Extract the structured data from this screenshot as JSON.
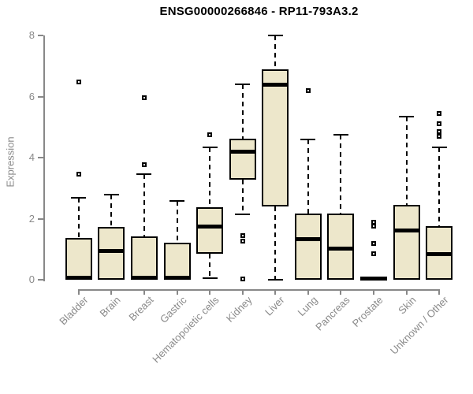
{
  "title": "ENSG00000266846 - RP11-793A3.2",
  "chart_data": {
    "type": "boxplot",
    "title": "ENSG00000266846 - RP11-793A3.2",
    "ylabel": "Expression",
    "xlabel": "",
    "ylim": [
      0,
      8
    ],
    "yticks": [
      0,
      2,
      4,
      6,
      8
    ],
    "grid": false,
    "legend": "none",
    "categories": [
      "Bladder",
      "Brain",
      "Breast",
      "Gastric",
      "Hematopoietic cells",
      "Kidney",
      "Liver",
      "Lung",
      "Pancreas",
      "Prostate",
      "Skin",
      "Unknown / Other"
    ],
    "series": [
      {
        "name": "Bladder",
        "whisker_low": 0,
        "q1": 0,
        "median": 0.07,
        "q3": 1.37,
        "whisker_high": 2.7,
        "outliers": [
          3.48,
          6.5
        ]
      },
      {
        "name": "Brain",
        "whisker_low": 0.02,
        "q1": 0.02,
        "median": 0.95,
        "q3": 1.73,
        "whisker_high": 2.8,
        "outliers": []
      },
      {
        "name": "Breast",
        "whisker_low": 0,
        "q1": 0,
        "median": 0.07,
        "q3": 1.44,
        "whisker_high": 3.46,
        "outliers": [
          3.77,
          5.98
        ]
      },
      {
        "name": "Gastric",
        "whisker_low": 0,
        "q1": 0,
        "median": 0.07,
        "q3": 1.22,
        "whisker_high": 2.6,
        "outliers": []
      },
      {
        "name": "Hematopoietic cells",
        "whisker_low": 0.05,
        "q1": 0.85,
        "median": 1.74,
        "q3": 2.39,
        "whisker_high": 4.34,
        "outliers": [
          4.76
        ]
      },
      {
        "name": "Kidney",
        "whisker_low": 2.14,
        "q1": 3.3,
        "median": 4.2,
        "q3": 4.64,
        "whisker_high": 6.4,
        "outliers": [
          1.45,
          1.28,
          0.03
        ]
      },
      {
        "name": "Liver",
        "whisker_low": 0.02,
        "q1": 2.4,
        "median": 6.4,
        "q3": 6.9,
        "whisker_high": 8.02,
        "outliers": []
      },
      {
        "name": "Lung",
        "whisker_low": 0.02,
        "q1": 0.02,
        "median": 1.35,
        "q3": 2.18,
        "whisker_high": 4.6,
        "outliers": [
          6.2
        ]
      },
      {
        "name": "Pancreas",
        "whisker_low": 0.02,
        "q1": 0.02,
        "median": 1.03,
        "q3": 2.18,
        "whisker_high": 4.77,
        "outliers": []
      },
      {
        "name": "Prostate",
        "whisker_low": 0,
        "q1": 0,
        "median": 0.04,
        "q3": 0.08,
        "whisker_high": 0.08,
        "outliers": [
          1.9,
          1.77,
          1.2,
          0.85
        ]
      },
      {
        "name": "Skin",
        "whisker_low": 0.02,
        "q1": 0.02,
        "median": 1.63,
        "q3": 2.45,
        "whisker_high": 5.36,
        "outliers": []
      },
      {
        "name": "Unknown / Other",
        "whisker_low": 0,
        "q1": 0,
        "median": 0.85,
        "q3": 1.77,
        "whisker_high": 4.34,
        "outliers": [
          5.46,
          5.12,
          4.86,
          4.7
        ]
      }
    ],
    "colors": {
      "box_fill": "#EDE7CB",
      "box_border": "#000000",
      "median": "#000000",
      "whisker": "#000000",
      "outlier": "#000000",
      "axis": "#888888",
      "tick_label": "#8A8A8A",
      "title": "#000000",
      "background": "#FFFFFF"
    }
  }
}
